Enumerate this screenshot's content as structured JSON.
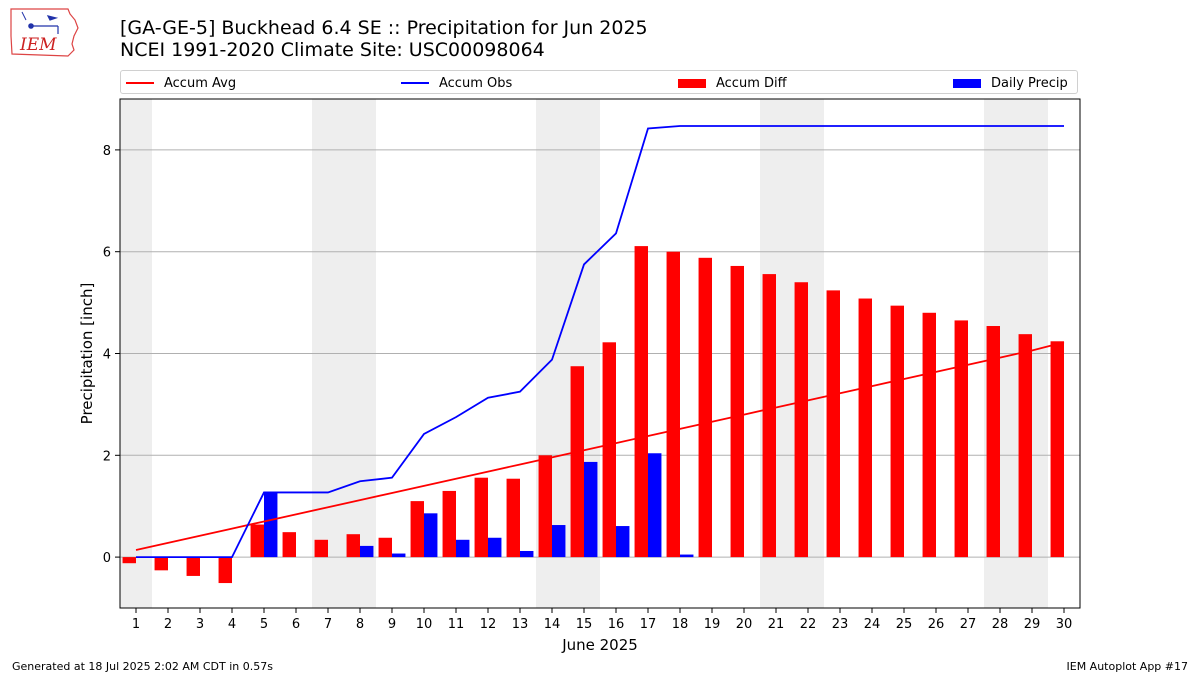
{
  "header": {
    "title_line1": "[GA-GE-5] Buckhead 6.4 SE :: Precipitation for Jun 2025",
    "title_line2": "NCEI 1991-2020 Climate Site: USC00098064",
    "logo_text": "IEM"
  },
  "footer": {
    "generated": "Generated at 18 Jul 2025 2:02 AM CDT in 0.57s",
    "app": "IEM Autoplot App #17"
  },
  "chart_data": {
    "type": "bar",
    "xlabel": "June 2025",
    "ylabel": "Precipitation [inch]",
    "ylim": [
      -1.0,
      9.0
    ],
    "yticks": [
      0,
      2,
      4,
      6,
      8
    ],
    "grid": true,
    "legend_position": "top",
    "weekend_shading": [
      1,
      7,
      8,
      14,
      15,
      21,
      22,
      28,
      29
    ],
    "categories": [
      "1",
      "2",
      "3",
      "4",
      "5",
      "6",
      "7",
      "8",
      "9",
      "10",
      "11",
      "12",
      "13",
      "14",
      "15",
      "16",
      "17",
      "18",
      "19",
      "20",
      "21",
      "22",
      "23",
      "24",
      "25",
      "26",
      "27",
      "28",
      "29",
      "30"
    ],
    "series": [
      {
        "name": "Accum Avg",
        "kind": "line",
        "color": "#ff0000",
        "values": [
          0.14,
          0.28,
          0.42,
          0.56,
          0.7,
          0.84,
          0.98,
          1.12,
          1.26,
          1.4,
          1.54,
          1.68,
          1.82,
          1.96,
          2.1,
          2.24,
          2.38,
          2.52,
          2.66,
          2.8,
          2.94,
          3.08,
          3.22,
          3.36,
          3.5,
          3.64,
          3.78,
          3.92,
          4.06,
          4.22
        ]
      },
      {
        "name": "Accum Obs",
        "kind": "line",
        "color": "#0000ff",
        "values": [
          0.0,
          0.0,
          0.0,
          0.0,
          1.27,
          1.27,
          1.27,
          1.49,
          1.56,
          2.42,
          2.75,
          3.13,
          3.25,
          3.88,
          5.75,
          6.36,
          8.42,
          8.47,
          8.47,
          8.47,
          8.47,
          8.47,
          8.47,
          8.47,
          8.47,
          8.47,
          8.47,
          8.47,
          8.47,
          8.47
        ]
      },
      {
        "name": "Accum Diff",
        "kind": "bar",
        "color": "#ff0000",
        "values": [
          -0.12,
          -0.26,
          -0.37,
          -0.51,
          0.64,
          0.49,
          0.34,
          0.45,
          0.38,
          1.1,
          1.3,
          1.56,
          1.54,
          2.0,
          3.75,
          4.22,
          6.11,
          6.0,
          5.88,
          5.72,
          5.56,
          5.4,
          5.24,
          5.08,
          4.94,
          4.8,
          4.65,
          4.54,
          4.38,
          4.24
        ]
      },
      {
        "name": "Daily Precip",
        "kind": "bar",
        "color": "#0000ff",
        "values": [
          0,
          0,
          0,
          0,
          1.27,
          0,
          0,
          0.22,
          0.07,
          0.86,
          0.34,
          0.38,
          0.12,
          0.63,
          1.87,
          0.61,
          2.04,
          0.05,
          0,
          0,
          0,
          0,
          0,
          0,
          0,
          0,
          0,
          0,
          0,
          0
        ]
      }
    ]
  }
}
